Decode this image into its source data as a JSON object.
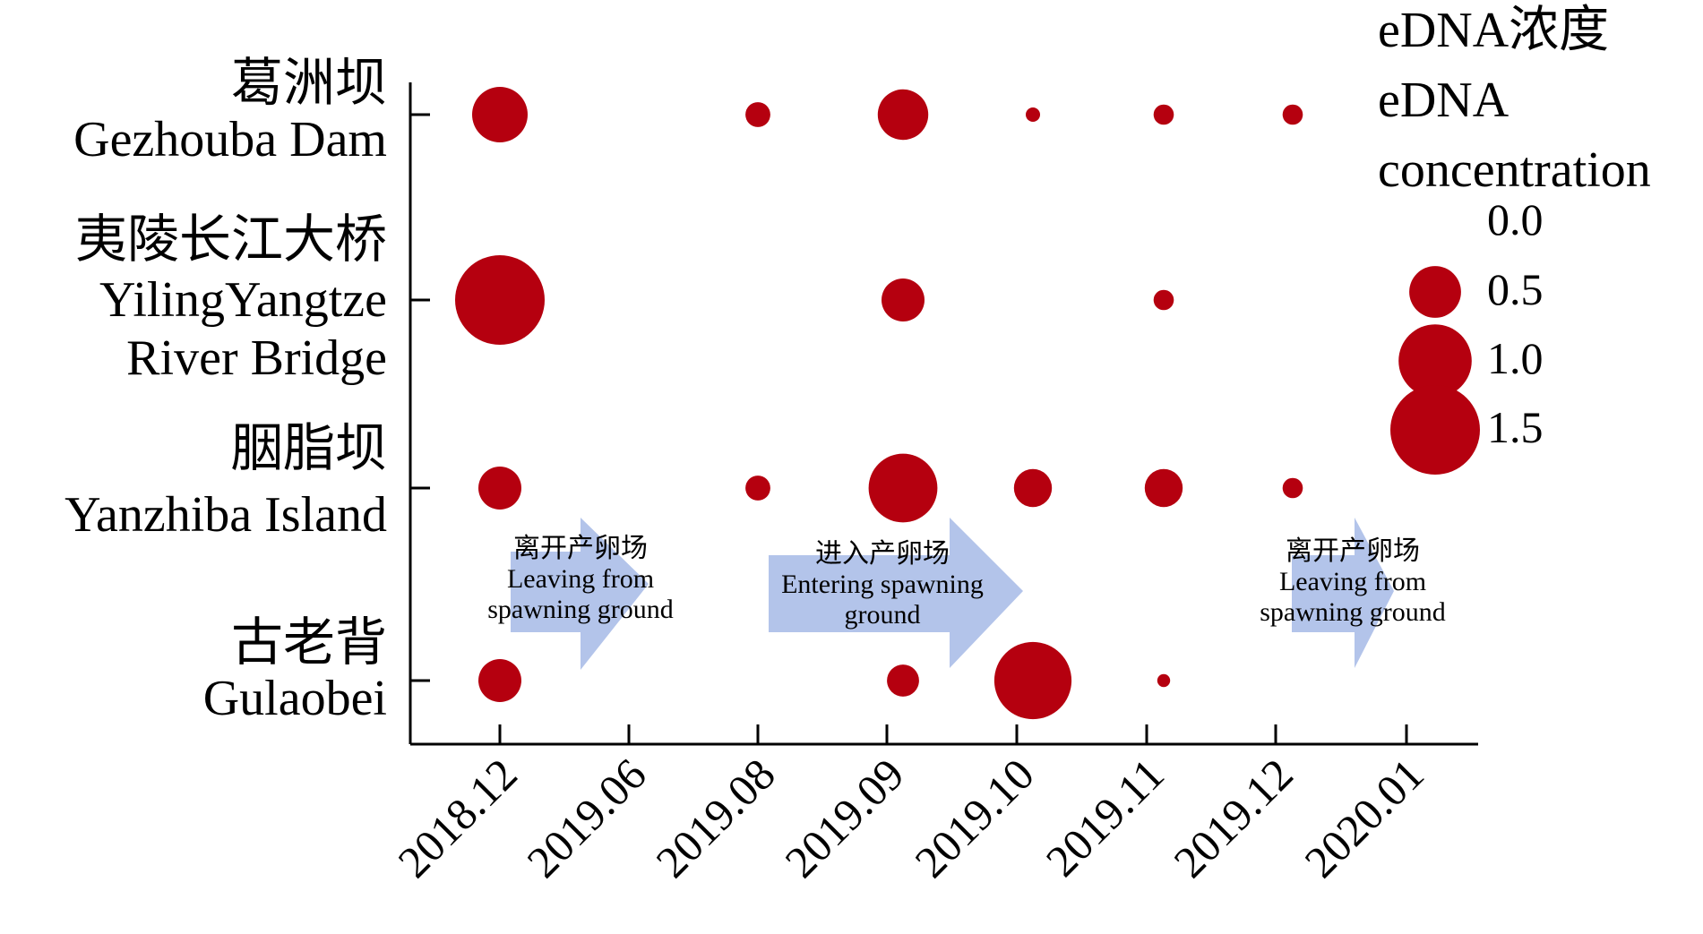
{
  "chart_data": {
    "type": "scatter",
    "title": "",
    "xlabel": "",
    "ylabel": "",
    "colors": {
      "bubble": "#b5000f",
      "arrow": "#b3c4ea",
      "axis": "#000000"
    },
    "categories": [
      "2018.12",
      "2019.06",
      "2019.08",
      "2019.09",
      "2019.10",
      "2019.11",
      "2019.12",
      "2020.01"
    ],
    "sites": [
      {
        "zh": "葛洲坝",
        "en": [
          "Gezhouba Dam"
        ]
      },
      {
        "zh": "夷陵长江大桥",
        "en": [
          "YilingYangtze",
          "River Bridge"
        ]
      },
      {
        "zh": "胭脂坝",
        "en": [
          "Yanzhiba Island"
        ]
      },
      {
        "zh": "古老背",
        "en": [
          "Gulaobei"
        ]
      }
    ],
    "legend": {
      "title": [
        "eDNA浓度",
        "eDNA",
        "concentration"
      ],
      "entries": [
        "0.0",
        "0.5",
        "1.0",
        "1.5"
      ],
      "values": [
        0.0,
        0.5,
        1.0,
        1.5
      ],
      "placement": "top-right"
    },
    "points": [
      {
        "site": "葛洲坝",
        "date": "2018.12",
        "value": 0.75
      },
      {
        "site": "葛洲坝",
        "date": "2019.08",
        "value": 0.15
      },
      {
        "site": "葛洲坝",
        "date": "2019.09",
        "value": 0.62
      },
      {
        "site": "葛洲坝",
        "date": "2019.10",
        "value": 0.05
      },
      {
        "site": "葛洲坝",
        "date": "2019.11",
        "value": 0.1
      },
      {
        "site": "葛洲坝",
        "date": "2019.12",
        "value": 0.1
      },
      {
        "site": "夷陵长江大桥",
        "date": "2018.12",
        "value": 1.95
      },
      {
        "site": "夷陵长江大桥",
        "date": "2019.09",
        "value": 0.45
      },
      {
        "site": "夷陵长江大桥",
        "date": "2019.11",
        "value": 0.1
      },
      {
        "site": "胭脂坝",
        "date": "2018.12",
        "value": 0.45
      },
      {
        "site": "胭脂坝",
        "date": "2019.08",
        "value": 0.15
      },
      {
        "site": "胭脂坝",
        "date": "2019.09",
        "value": 1.15
      },
      {
        "site": "胭脂坝",
        "date": "2019.10",
        "value": 0.35
      },
      {
        "site": "胭脂坝",
        "date": "2019.11",
        "value": 0.35
      },
      {
        "site": "胭脂坝",
        "date": "2019.12",
        "value": 0.1
      },
      {
        "site": "古老背",
        "date": "2018.12",
        "value": 0.45
      },
      {
        "site": "古老背",
        "date": "2019.09",
        "value": 0.25
      },
      {
        "site": "古老背",
        "date": "2019.10",
        "value": 1.45
      },
      {
        "site": "古老背",
        "date": "2019.11",
        "value": 0.04
      }
    ],
    "annotations": [
      {
        "lines": [
          "离开产卵场",
          "Leaving from",
          "spawning ground"
        ]
      },
      {
        "lines": [
          "进入产卵场",
          "Entering spawning",
          "ground"
        ]
      },
      {
        "lines": [
          "离开产卵场",
          "Leaving from",
          "spawning ground"
        ]
      }
    ]
  }
}
